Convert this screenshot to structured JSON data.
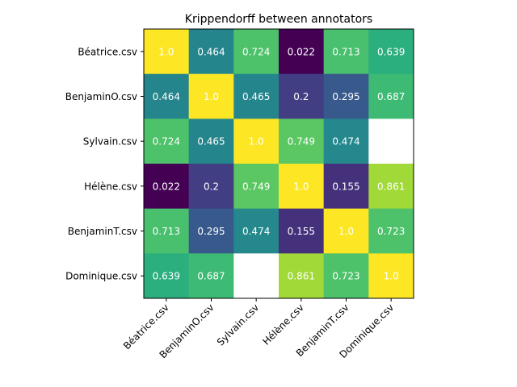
{
  "chart_data": {
    "type": "heatmap",
    "title": "Krippendorff between annotators",
    "row_labels": [
      "Béatrice.csv",
      "BenjaminO.csv",
      "Sylvain.csv",
      "Hélène.csv",
      "BenjaminT.csv",
      "Dominique.csv"
    ],
    "col_labels": [
      "Béatrice.csv",
      "BenjaminO.csv",
      "Sylvain.csv",
      "Hélène.csv",
      "BenjaminT.csv",
      "Dominique.csv"
    ],
    "values": [
      [
        1.0,
        0.464,
        0.724,
        0.022,
        0.713,
        0.639
      ],
      [
        0.464,
        1.0,
        0.465,
        0.2,
        0.295,
        0.687
      ],
      [
        0.724,
        0.465,
        1.0,
        0.749,
        0.474,
        null
      ],
      [
        0.022,
        0.2,
        0.749,
        1.0,
        0.155,
        0.861
      ],
      [
        0.713,
        0.295,
        0.474,
        0.155,
        1.0,
        0.723
      ],
      [
        0.639,
        0.687,
        null,
        0.861,
        0.723,
        1.0
      ]
    ],
    "cell_text": [
      [
        "1.0",
        "0.464",
        "0.724",
        "0.022",
        "0.713",
        "0.639"
      ],
      [
        "0.464",
        "1.0",
        "0.465",
        "0.2",
        "0.295",
        "0.687"
      ],
      [
        "0.724",
        "0.465",
        "1.0",
        "0.749",
        "0.474",
        ""
      ],
      [
        "0.022",
        "0.2",
        "0.749",
        "1.0",
        "0.155",
        "0.861"
      ],
      [
        "0.713",
        "0.295",
        "0.474",
        "0.155",
        "1.0",
        "0.723"
      ],
      [
        "0.639",
        "0.687",
        "",
        "0.861",
        "0.723",
        "1.0"
      ]
    ],
    "colormap": "viridis",
    "vmin": 0.022,
    "vmax": 1.0,
    "x_tick_rotation_deg": 45,
    "missing_color": "#ffffff",
    "cell_text_color": "#ffffff"
  }
}
